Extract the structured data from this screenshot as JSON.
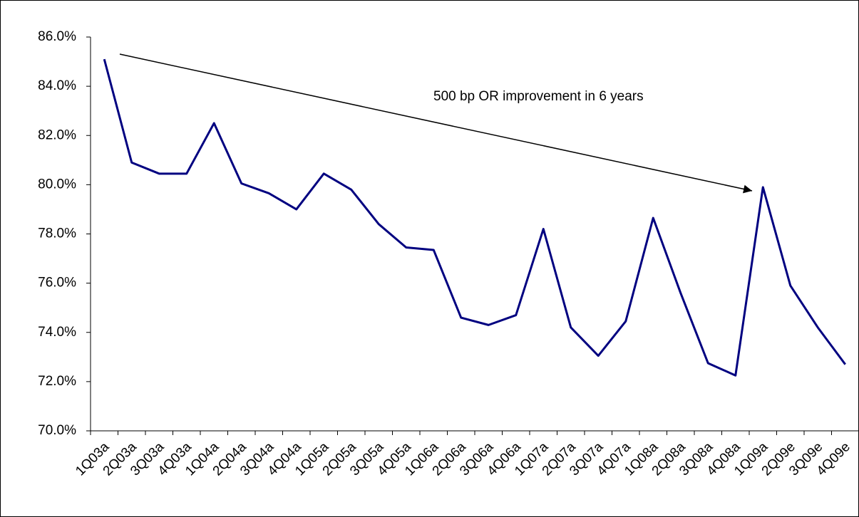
{
  "chart_data": {
    "type": "line",
    "annotation": "500 bp OR improvement in 6 years",
    "categories": [
      "1Q03a",
      "2Q03a",
      "3Q03a",
      "4Q03a",
      "1Q04a",
      "2Q04a",
      "3Q04a",
      "4Q04a",
      "1Q05a",
      "2Q05a",
      "3Q05a",
      "4Q05a",
      "1Q06a",
      "2Q06a",
      "3Q06a",
      "4Q06a",
      "1Q07a",
      "2Q07a",
      "3Q07a",
      "4Q07a",
      "1Q08a",
      "2Q08a",
      "3Q08a",
      "4Q08a",
      "1Q09a",
      "2Q09e",
      "3Q09e",
      "4Q09e"
    ],
    "values": [
      85.1,
      80.9,
      80.45,
      80.45,
      82.5,
      80.05,
      79.65,
      79.0,
      80.45,
      79.8,
      78.4,
      77.45,
      77.35,
      74.6,
      74.3,
      74.7,
      78.2,
      74.2,
      73.05,
      74.45,
      78.65,
      75.6,
      72.75,
      72.25,
      79.9,
      75.9,
      74.2,
      72.7
    ],
    "color": "#000080",
    "ylim": [
      70,
      86
    ],
    "yticks": [
      {
        "value": 70,
        "label": "70.0%"
      },
      {
        "value": 72,
        "label": "72.0%"
      },
      {
        "value": 74,
        "label": "74.0%"
      },
      {
        "value": 76,
        "label": "76.0%"
      },
      {
        "value": 78,
        "label": "78.0%"
      },
      {
        "value": 80,
        "label": "80.0%"
      },
      {
        "value": 82,
        "label": "82.0%"
      },
      {
        "value": 84,
        "label": "84.0%"
      },
      {
        "value": 86,
        "label": "86.0%"
      }
    ],
    "grid": false
  }
}
